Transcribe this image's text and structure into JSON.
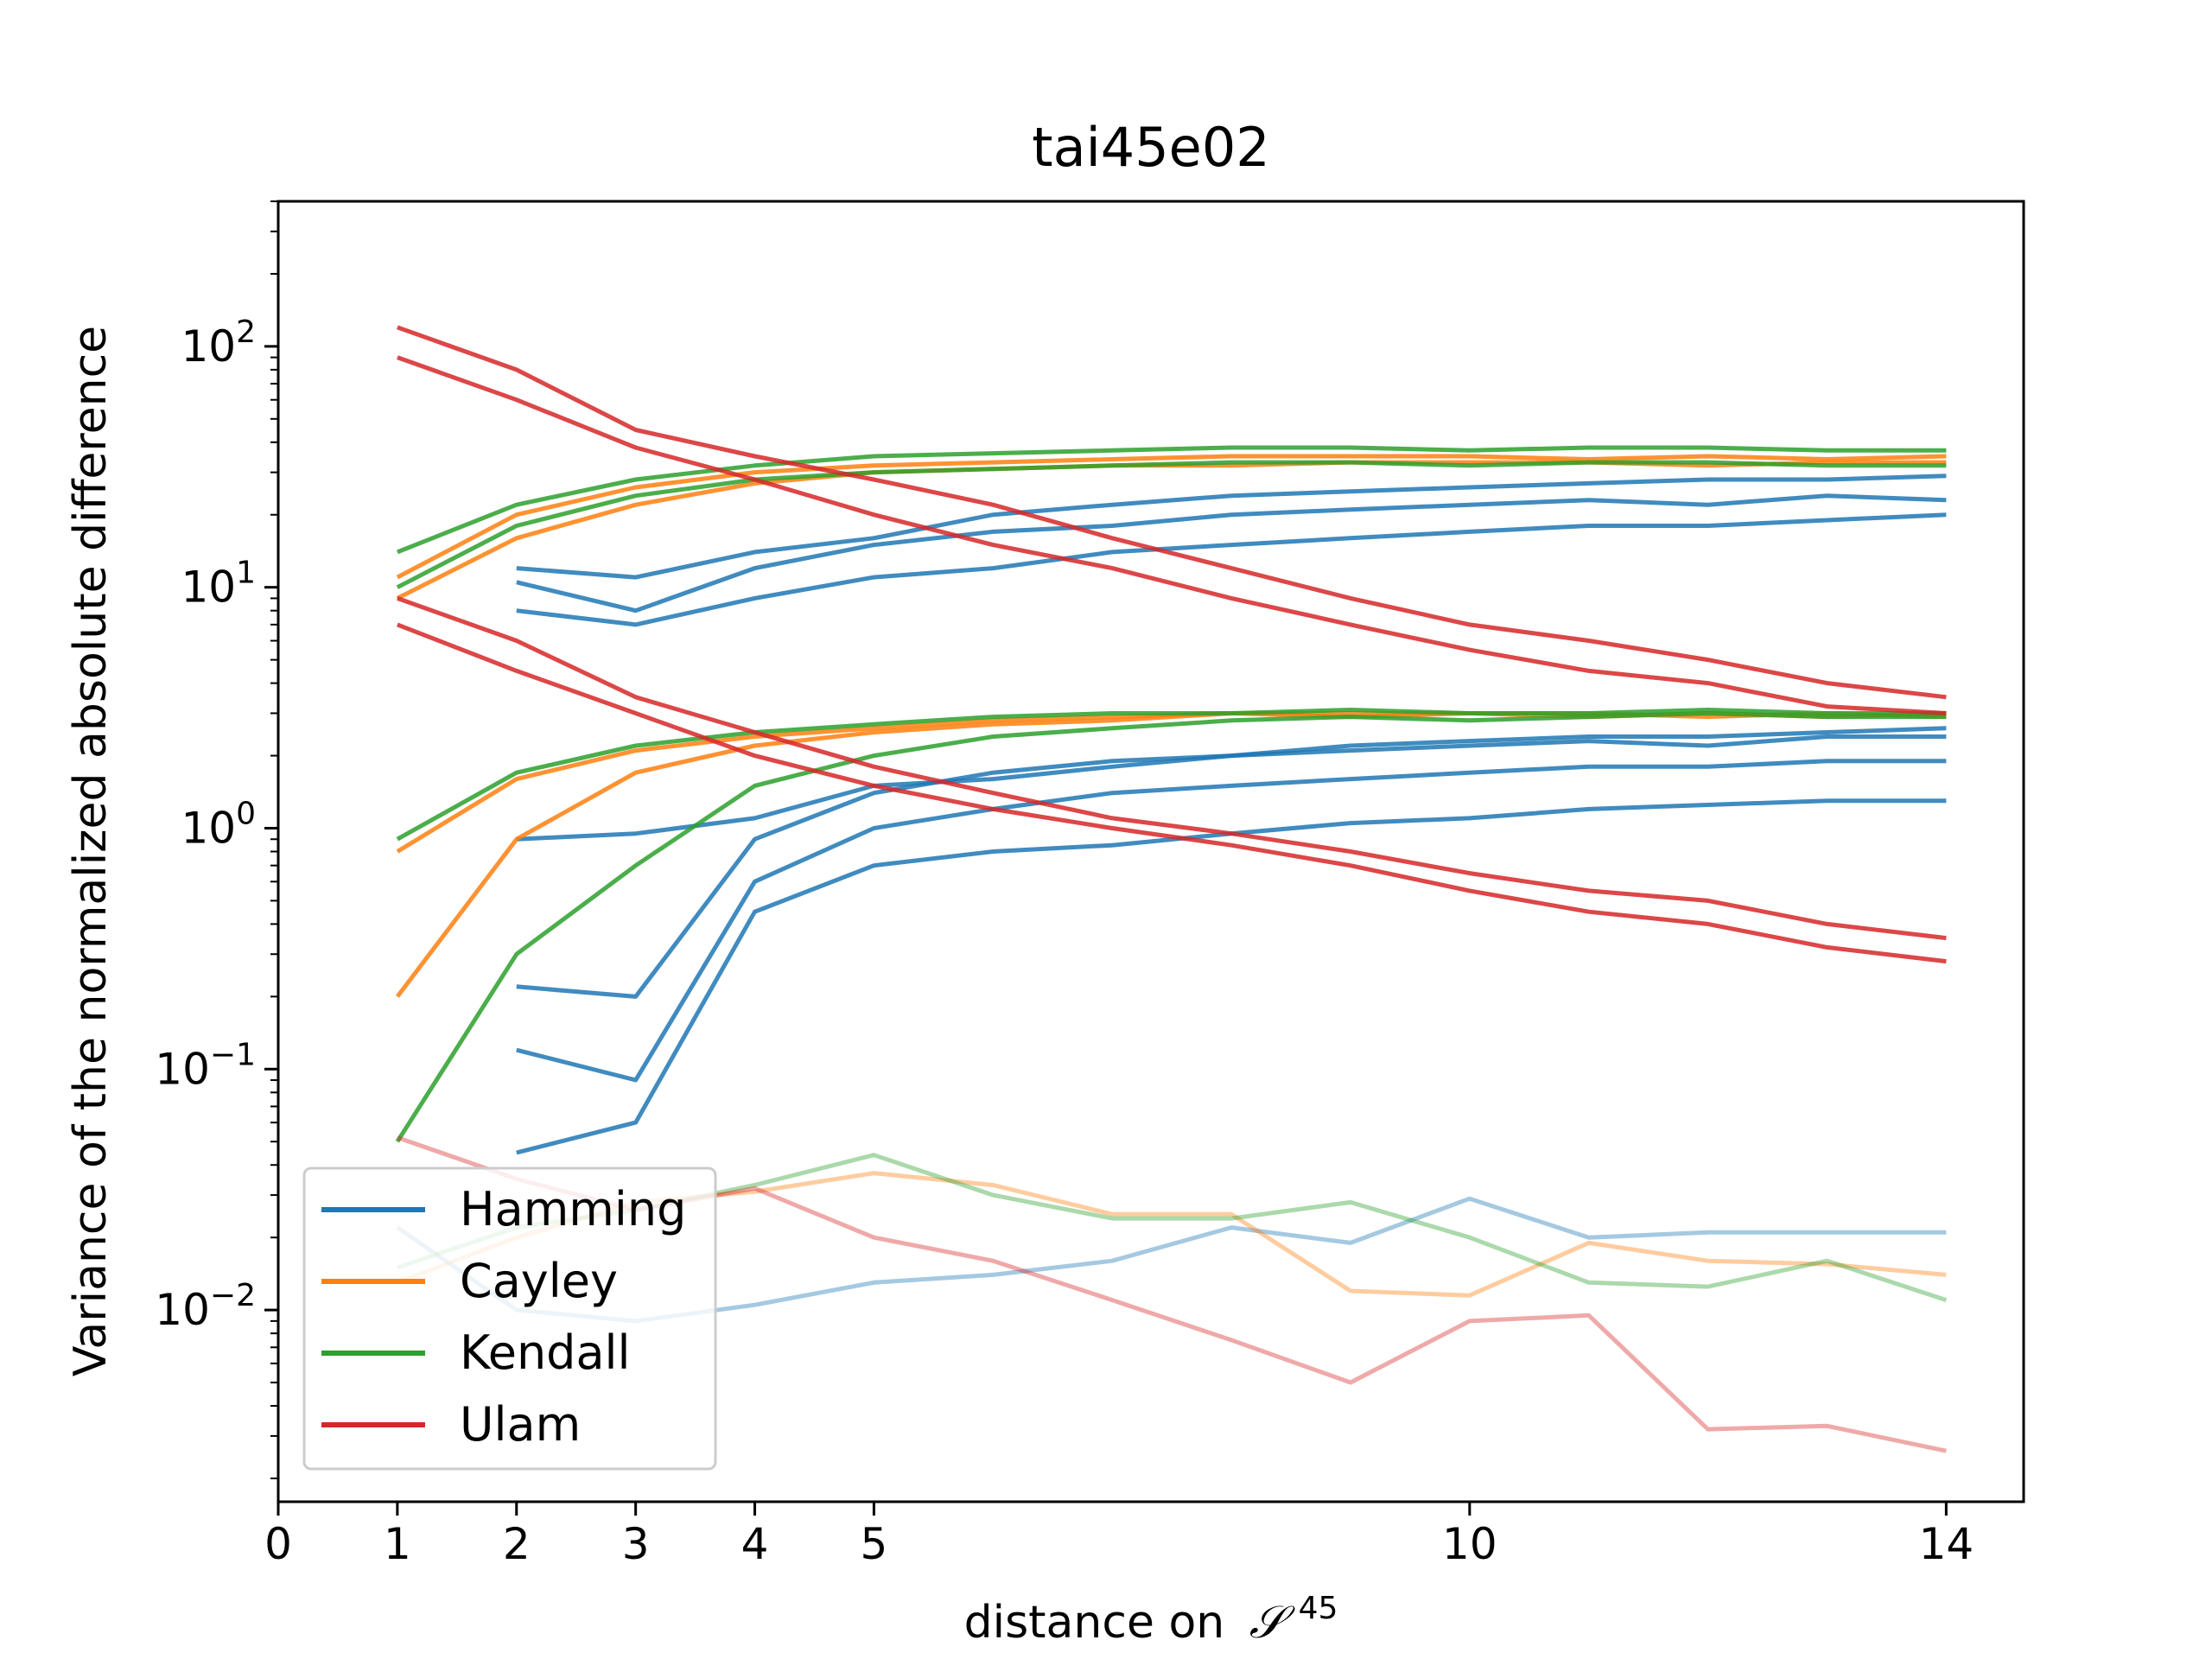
{
  "chart_data": {
    "type": "line",
    "title": "tai45e02",
    "xlabel": "distance on",
    "xlabel_math": {
      "symbol": "𝒮",
      "superscript": "45"
    },
    "ylabel": "Variance of the normalized absolute difference",
    "xlim": [
      0,
      14.65
    ],
    "ylim": [
      0.0016,
      400
    ],
    "yscale": "log",
    "grid": false,
    "legend_position": "lower-left",
    "xticks": [
      0,
      1,
      2,
      3,
      4,
      5,
      10,
      14
    ],
    "yticks": [
      {
        "value": 100,
        "base": "10",
        "exp": "2"
      },
      {
        "value": 10,
        "base": "10",
        "exp": "1"
      },
      {
        "value": 1,
        "base": "10",
        "exp": "0"
      },
      {
        "value": 0.1,
        "base": "10",
        "exp": "−1"
      },
      {
        "value": 0.01,
        "base": "10",
        "exp": "−2"
      }
    ],
    "series": [
      {
        "name": "Hamming",
        "color": "#1f77b4"
      },
      {
        "name": "Cayley",
        "color": "#ff7f0e"
      },
      {
        "name": "Kendall",
        "color": "#2ca02c"
      },
      {
        "name": "Ulam",
        "color": "#d62728"
      }
    ],
    "lines": [
      {
        "series": "Hamming",
        "opacity": 0.85,
        "x": [
          2,
          3,
          4,
          5,
          6,
          7,
          8,
          9,
          10,
          11,
          12,
          13,
          14
        ],
        "y": [
          0.045,
          0.06,
          0.45,
          0.7,
          0.8,
          0.85,
          0.95,
          1.05,
          1.1,
          1.2,
          1.25,
          1.3,
          1.3
        ]
      },
      {
        "series": "Hamming",
        "opacity": 0.85,
        "x": [
          2,
          3,
          4,
          5,
          6,
          7,
          8,
          9,
          10,
          11,
          12,
          13,
          14
        ],
        "y": [
          0.12,
          0.09,
          0.6,
          1.0,
          1.2,
          1.4,
          1.5,
          1.6,
          1.7,
          1.8,
          1.8,
          1.9,
          1.9
        ]
      },
      {
        "series": "Hamming",
        "opacity": 0.85,
        "x": [
          2,
          3,
          4,
          5,
          6,
          7,
          8,
          9,
          10,
          11,
          12,
          13,
          14
        ],
        "y": [
          0.22,
          0.2,
          0.9,
          1.4,
          1.7,
          1.9,
          2.0,
          2.2,
          2.3,
          2.4,
          2.4,
          2.5,
          2.6
        ]
      },
      {
        "series": "Hamming",
        "opacity": 0.85,
        "x": [
          2,
          3,
          4,
          5,
          6,
          7,
          8,
          9,
          10,
          11,
          12,
          13,
          14
        ],
        "y": [
          0.9,
          0.95,
          1.1,
          1.5,
          1.6,
          1.8,
          2.0,
          2.1,
          2.2,
          2.3,
          2.2,
          2.4,
          2.4
        ]
      },
      {
        "series": "Hamming",
        "opacity": 0.85,
        "x": [
          2,
          3,
          4,
          5,
          6,
          7,
          8,
          9,
          10,
          11,
          12,
          13,
          14
        ],
        "y": [
          10.5,
          8.0,
          12.0,
          15.0,
          17.0,
          18.0,
          20.0,
          21.0,
          22.0,
          23.0,
          22.0,
          24.0,
          23.0
        ]
      },
      {
        "series": "Hamming",
        "opacity": 0.85,
        "x": [
          2,
          3,
          4,
          5,
          6,
          7,
          8,
          9,
          10,
          11,
          12,
          13,
          14
        ],
        "y": [
          12.0,
          11.0,
          14.0,
          16.0,
          20.0,
          22.0,
          24.0,
          25.0,
          26.0,
          27.0,
          28.0,
          28.0,
          29.0
        ]
      },
      {
        "series": "Hamming",
        "opacity": 0.85,
        "x": [
          2,
          3,
          4,
          5,
          6,
          7,
          8,
          9,
          10,
          11,
          12,
          13,
          14
        ],
        "y": [
          8.0,
          7.0,
          9.0,
          11.0,
          12.0,
          14.0,
          15.0,
          16.0,
          17.0,
          18.0,
          18.0,
          19.0,
          20.0
        ]
      },
      {
        "series": "Hamming",
        "opacity": 0.4,
        "x": [
          1,
          2,
          3,
          4,
          5,
          6,
          7,
          8,
          9,
          10,
          11,
          12,
          13,
          14
        ],
        "y": [
          0.022,
          0.01,
          0.009,
          0.0105,
          0.013,
          0.014,
          0.016,
          0.022,
          0.019,
          0.029,
          0.02,
          0.021,
          0.021,
          0.021
        ]
      },
      {
        "series": "Cayley",
        "opacity": 0.85,
        "x": [
          1,
          2,
          3,
          4,
          5,
          6,
          7,
          8,
          9,
          10,
          11,
          12,
          13,
          14
        ],
        "y": [
          0.8,
          1.6,
          2.1,
          2.4,
          2.6,
          2.8,
          2.9,
          3.0,
          3.0,
          3.0,
          2.9,
          3.0,
          2.9,
          3.0
        ]
      },
      {
        "series": "Cayley",
        "opacity": 0.85,
        "x": [
          1,
          2,
          3,
          4,
          5,
          6,
          7,
          8,
          9,
          10,
          11,
          12,
          13,
          14
        ],
        "y": [
          0.2,
          0.9,
          1.7,
          2.2,
          2.5,
          2.7,
          2.8,
          3.0,
          2.9,
          3.0,
          3.0,
          2.9,
          3.0,
          2.9
        ]
      },
      {
        "series": "Cayley",
        "opacity": 0.85,
        "x": [
          1,
          2,
          3,
          4,
          5,
          6,
          7,
          8,
          9,
          10,
          11,
          12,
          13,
          14
        ],
        "y": [
          11.0,
          20.0,
          26.0,
          30.0,
          32.0,
          33.0,
          34.0,
          35.0,
          35.0,
          35.0,
          34.0,
          35.0,
          34.0,
          35.0
        ]
      },
      {
        "series": "Cayley",
        "opacity": 0.85,
        "x": [
          1,
          2,
          3,
          4,
          5,
          6,
          7,
          8,
          9,
          10,
          11,
          12,
          13,
          14
        ],
        "y": [
          9.0,
          16.0,
          22.0,
          27.0,
          30.0,
          31.0,
          32.0,
          32.0,
          33.0,
          33.0,
          33.0,
          32.0,
          33.0,
          33.0
        ]
      },
      {
        "series": "Cayley",
        "opacity": 0.4,
        "x": [
          1,
          2,
          3,
          4,
          5,
          6,
          7,
          8,
          9,
          10,
          11,
          12,
          13,
          14
        ],
        "y": [
          0.013,
          0.02,
          0.028,
          0.031,
          0.037,
          0.033,
          0.025,
          0.025,
          0.012,
          0.0115,
          0.019,
          0.016,
          0.0155,
          0.014
        ]
      },
      {
        "series": "Kendall",
        "opacity": 0.85,
        "x": [
          1,
          2,
          3,
          4,
          5,
          6,
          7,
          8,
          9,
          10,
          11,
          12,
          13,
          14
        ],
        "y": [
          0.05,
          0.3,
          0.7,
          1.5,
          2.0,
          2.4,
          2.6,
          2.8,
          2.9,
          2.8,
          2.9,
          3.0,
          2.9,
          2.9
        ]
      },
      {
        "series": "Kendall",
        "opacity": 0.85,
        "x": [
          1,
          2,
          3,
          4,
          5,
          6,
          7,
          8,
          9,
          10,
          11,
          12,
          13,
          14
        ],
        "y": [
          0.9,
          1.7,
          2.2,
          2.5,
          2.7,
          2.9,
          3.0,
          3.0,
          3.1,
          3.0,
          3.0,
          3.1,
          3.0,
          3.0
        ]
      },
      {
        "series": "Kendall",
        "opacity": 0.85,
        "x": [
          1,
          2,
          3,
          4,
          5,
          6,
          7,
          8,
          9,
          10,
          11,
          12,
          13,
          14
        ],
        "y": [
          10.0,
          18.0,
          24.0,
          28.0,
          30.0,
          31.0,
          32.0,
          33.0,
          33.0,
          32.0,
          33.0,
          33.0,
          32.0,
          32.0
        ]
      },
      {
        "series": "Kendall",
        "opacity": 0.85,
        "x": [
          1,
          2,
          3,
          4,
          5,
          6,
          7,
          8,
          9,
          10,
          11,
          12,
          13,
          14
        ],
        "y": [
          14.0,
          22.0,
          28.0,
          32.0,
          35.0,
          36.0,
          37.0,
          38.0,
          38.0,
          37.0,
          38.0,
          38.0,
          37.0,
          37.0
        ]
      },
      {
        "series": "Kendall",
        "opacity": 0.4,
        "x": [
          1,
          2,
          3,
          4,
          5,
          6,
          7,
          8,
          9,
          10,
          11,
          12,
          13,
          14
        ],
        "y": [
          0.015,
          0.022,
          0.026,
          0.033,
          0.044,
          0.03,
          0.024,
          0.024,
          0.028,
          0.02,
          0.013,
          0.0125,
          0.016,
          0.011
        ]
      },
      {
        "series": "Ulam",
        "opacity": 0.85,
        "x": [
          1,
          2,
          3,
          4,
          5,
          6,
          7,
          8,
          9,
          10,
          11,
          12,
          13,
          14
        ],
        "y": [
          120.0,
          80.0,
          45.0,
          35.0,
          28.0,
          22.0,
          16.0,
          12.0,
          9.0,
          7.0,
          6.0,
          5.0,
          4.0,
          3.5
        ]
      },
      {
        "series": "Ulam",
        "opacity": 0.85,
        "x": [
          1,
          2,
          3,
          4,
          5,
          6,
          7,
          8,
          9,
          10,
          11,
          12,
          13,
          14
        ],
        "y": [
          90.0,
          60.0,
          38.0,
          28.0,
          20.0,
          15.0,
          12.0,
          9.0,
          7.0,
          5.5,
          4.5,
          4.0,
          3.2,
          3.0
        ]
      },
      {
        "series": "Ulam",
        "opacity": 0.85,
        "x": [
          1,
          2,
          3,
          4,
          5,
          6,
          7,
          8,
          9,
          10,
          11,
          12,
          13,
          14
        ],
        "y": [
          9.0,
          6.0,
          3.5,
          2.5,
          1.8,
          1.4,
          1.1,
          0.95,
          0.8,
          0.65,
          0.55,
          0.5,
          0.4,
          0.35
        ]
      },
      {
        "series": "Ulam",
        "opacity": 0.85,
        "x": [
          1,
          2,
          3,
          4,
          5,
          6,
          7,
          8,
          9,
          10,
          11,
          12,
          13,
          14
        ],
        "y": [
          7.0,
          4.5,
          3.0,
          2.0,
          1.5,
          1.2,
          1.0,
          0.85,
          0.7,
          0.55,
          0.45,
          0.4,
          0.32,
          0.28
        ]
      },
      {
        "series": "Ulam",
        "opacity": 0.4,
        "x": [
          1,
          2,
          3,
          4,
          5,
          6,
          7,
          8,
          9,
          10,
          11,
          12,
          13,
          14
        ],
        "y": [
          0.052,
          0.035,
          0.026,
          0.032,
          0.02,
          0.016,
          0.011,
          0.0075,
          0.005,
          0.009,
          0.0095,
          0.0032,
          0.0033,
          0.0026
        ]
      }
    ]
  }
}
